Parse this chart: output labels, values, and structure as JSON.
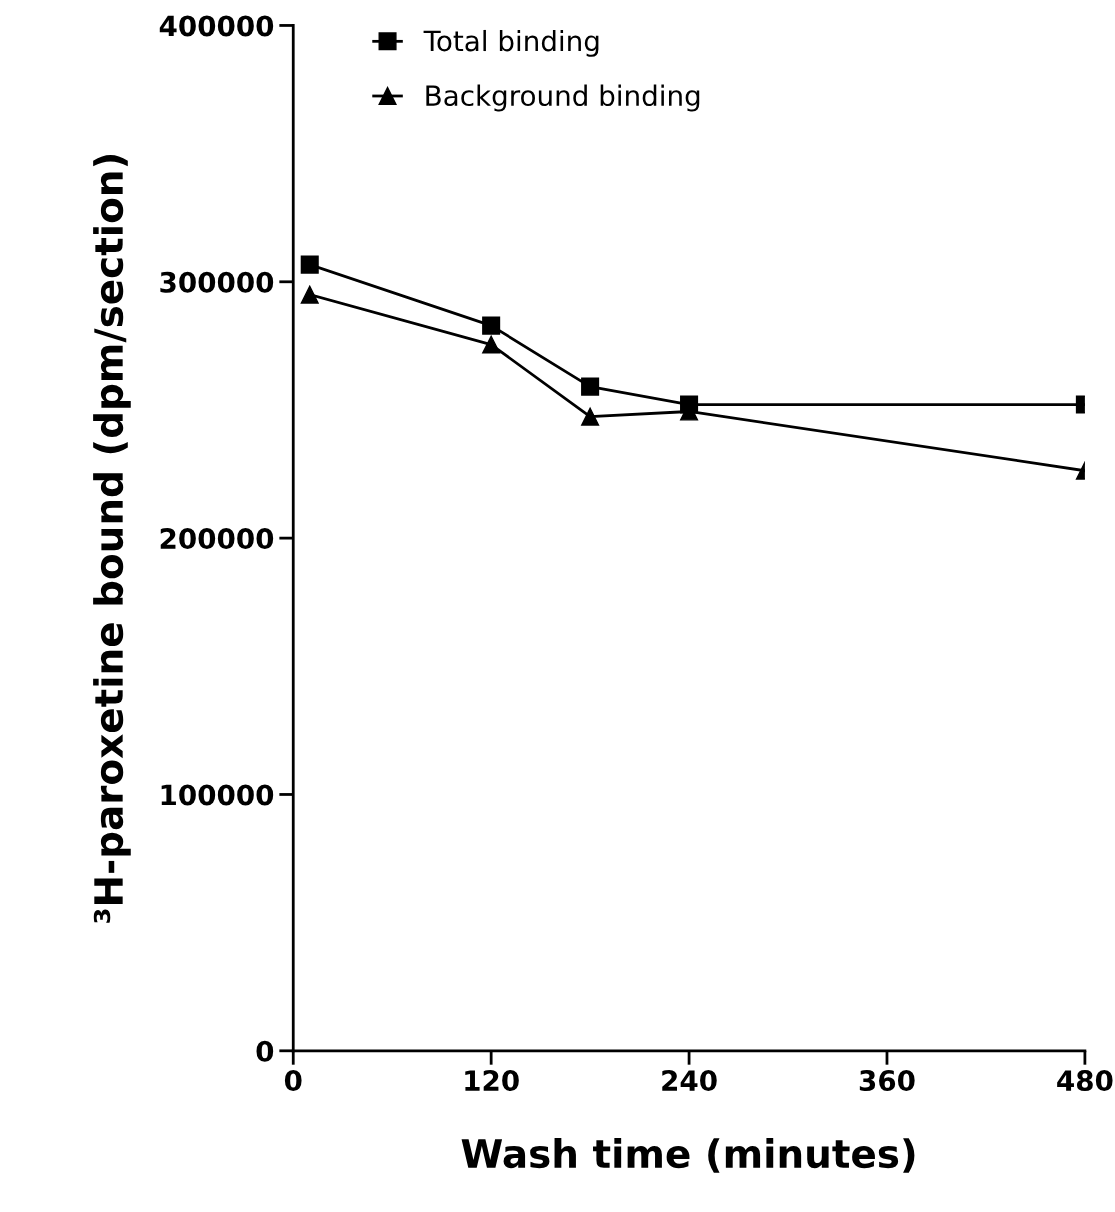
{
  "chart_data": {
    "type": "line",
    "xlabel": "Wash time (minutes)",
    "ylabel": "³H-paroxetine bound (dpm/section)",
    "xlim": [
      0,
      480
    ],
    "xticks": [
      0,
      120,
      240,
      360,
      480
    ],
    "ylim": [
      0,
      400000
    ],
    "yticks": [
      0,
      100000,
      200000,
      300000,
      400000
    ],
    "grid": false,
    "legend": "top left",
    "series": [
      {
        "name": "Total binding",
        "color": "#000000",
        "marker": "square",
        "x": [
          10,
          120,
          180,
          240,
          480
        ],
        "values": [
          306700,
          282900,
          259100,
          252100,
          252100
        ]
      },
      {
        "name": "Background binding",
        "color": "#000000",
        "marker": "triangle",
        "x": [
          10,
          120,
          180,
          240,
          480
        ],
        "values": [
          295000,
          275500,
          247400,
          249400,
          226300
        ]
      }
    ]
  }
}
